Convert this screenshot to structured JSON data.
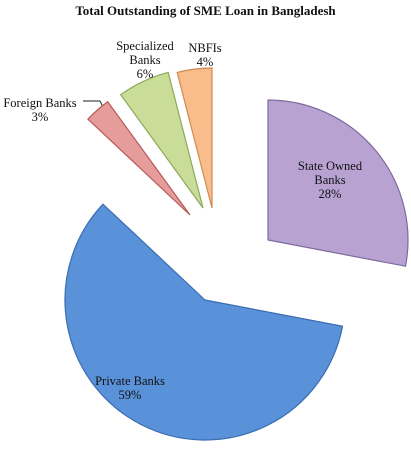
{
  "chart_data": {
    "type": "pie",
    "title": "Total Outstanding of SME Loan in Bangladesh",
    "categories": [
      "State Owned Banks",
      "Private Banks",
      "Foreign Banks",
      "Specialized Banks",
      "NBFIs"
    ],
    "values": [
      28,
      59,
      3,
      6,
      4
    ],
    "value_labels": [
      "28%",
      "59%",
      "3%",
      "6%",
      "4%"
    ],
    "colors": [
      "#b7a2d2",
      "#5a92da",
      "#e59c9a",
      "#c9dc98",
      "#f8bd8a"
    ]
  }
}
